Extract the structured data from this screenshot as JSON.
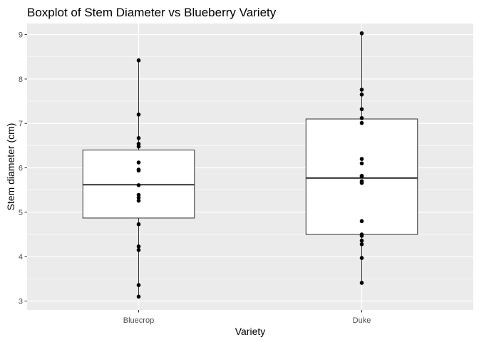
{
  "chart_data": {
    "type": "boxplot",
    "title": "Boxplot of Stem Diameter vs Blueberry Variety",
    "xlabel": "Variety",
    "ylabel": "Stem diameter (cm)",
    "categories": [
      "Bluecrop",
      "Duke"
    ],
    "ylim": [
      2.8,
      9.25
    ],
    "y_ticks": [
      3,
      4,
      5,
      6,
      7,
      8,
      9
    ],
    "grid": true,
    "colors": {
      "panel": "#ebebeb",
      "grid": "#ffffff",
      "box_fill": "#ffffff",
      "box_line": "#333333",
      "point": "#000000"
    },
    "boxes": [
      {
        "name": "Bluecrop",
        "min": 3.1,
        "q1": 4.87,
        "median": 5.62,
        "q3": 6.4,
        "max": 8.42,
        "points": [
          8.42,
          7.2,
          6.67,
          6.54,
          6.48,
          6.12,
          5.96,
          5.94,
          5.61,
          5.39,
          5.33,
          5.26,
          4.73,
          4.23,
          4.15,
          3.36,
          3.1
        ]
      },
      {
        "name": "Duke",
        "min": 3.41,
        "q1": 4.5,
        "median": 5.77,
        "q3": 7.1,
        "max": 9.03,
        "points": [
          9.03,
          7.76,
          7.65,
          7.32,
          7.12,
          7.01,
          6.2,
          6.1,
          5.82,
          5.81,
          5.7,
          5.66,
          4.8,
          4.5,
          4.47,
          4.36,
          4.28,
          3.97,
          3.41
        ]
      }
    ]
  }
}
